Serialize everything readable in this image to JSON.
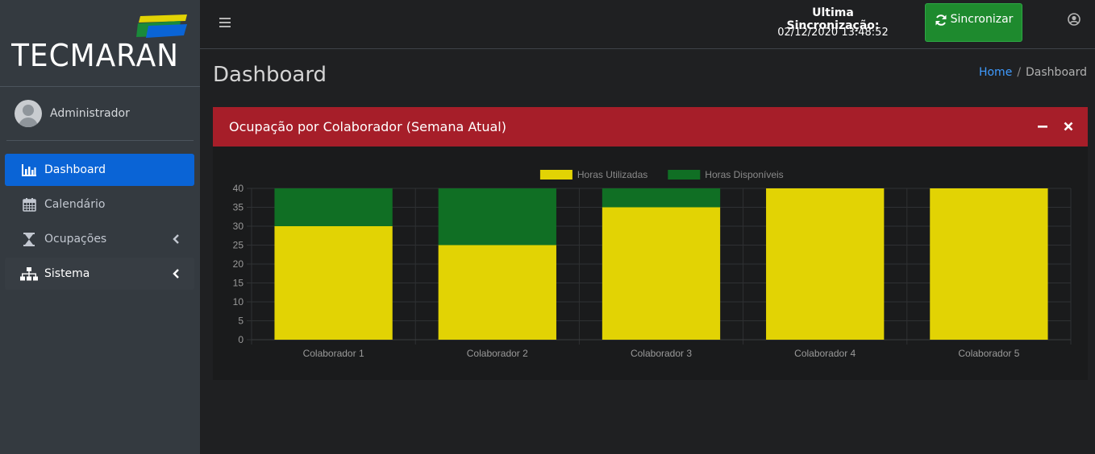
{
  "brand": {
    "name": "TECMARAN"
  },
  "user": {
    "name": "Administrador"
  },
  "sidebar": {
    "items": [
      {
        "label": "Dashboard",
        "icon": "bar-chart-icon"
      },
      {
        "label": "Calendário",
        "icon": "calendar-icon"
      },
      {
        "label": "Ocupações",
        "icon": "hourglass-icon"
      },
      {
        "label": "Sistema",
        "icon": "sitemap-icon"
      }
    ]
  },
  "topbar": {
    "sync_label": "Ultima Sincronização:",
    "sync_time": "02/12/2020 13:48:52",
    "sync_button": "Sincronizar"
  },
  "page": {
    "title": "Dashboard"
  },
  "breadcrumb": {
    "home": "Home",
    "current": "Dashboard"
  },
  "card": {
    "title": "Ocupação por Colaborador (Semana Atual)"
  },
  "colors": {
    "used": "#e2d304",
    "available": "#106f24",
    "header": "#a61e29",
    "active_nav": "#0a64d6"
  },
  "chart_data": {
    "type": "bar",
    "stacked": true,
    "categories": [
      "Colaborador 1",
      "Colaborador 2",
      "Colaborador 3",
      "Colaborador 4",
      "Colaborador 5"
    ],
    "series": [
      {
        "name": "Horas Utilizadas",
        "values": [
          30,
          25,
          35,
          40,
          40
        ]
      },
      {
        "name": "Horas Disponíveis",
        "values": [
          10,
          15,
          5,
          0,
          0
        ]
      }
    ],
    "ylim": [
      0,
      40
    ],
    "yticks": [
      0,
      5,
      10,
      15,
      20,
      25,
      30,
      35,
      40
    ],
    "legend": "top-center",
    "grid": true
  }
}
